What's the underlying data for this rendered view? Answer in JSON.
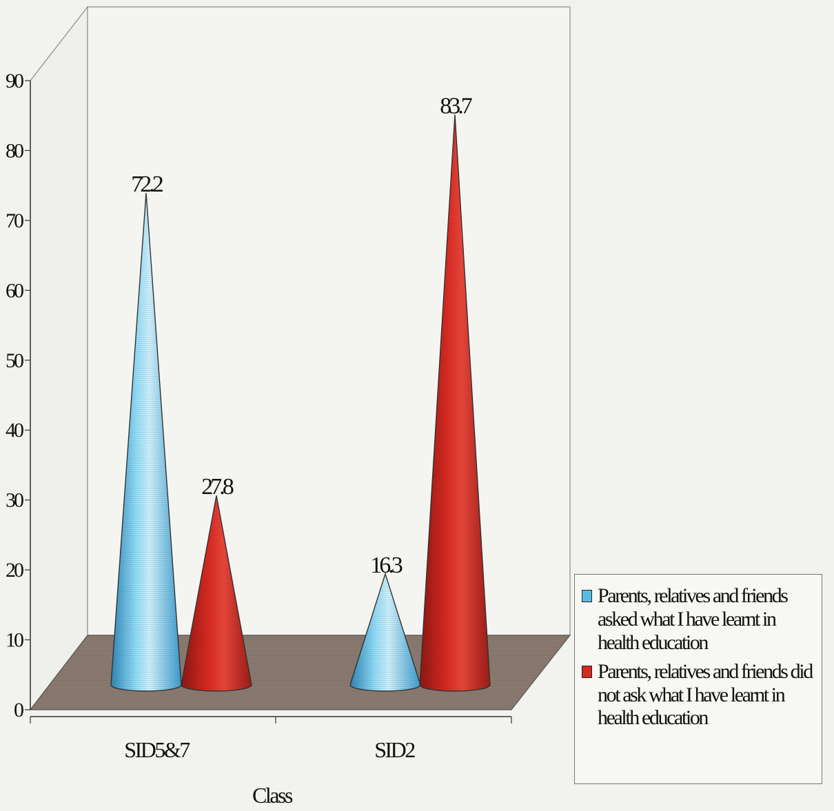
{
  "chart_data": {
    "type": "bar",
    "title": "",
    "xlabel": "Class",
    "ylabel": "",
    "ylim": [
      0,
      90
    ],
    "yticks": [
      0,
      10,
      20,
      30,
      40,
      50,
      60,
      70,
      80,
      90
    ],
    "categories": [
      "SID5&7",
      "SID2"
    ],
    "series": [
      {
        "name": "Parents, relatives and friends asked what I have learnt in health education",
        "values": [
          72.2,
          16.3
        ],
        "labels": [
          "72.2",
          "16.3"
        ],
        "color": "#57bde0"
      },
      {
        "name": "Parents, relatives and friends did not ask what I have learnt in health education",
        "values": [
          27.8,
          83.7
        ],
        "labels": [
          "27.8",
          "83.7"
        ],
        "color": "#d32a22"
      }
    ],
    "mark_shape": "cone",
    "grid": false,
    "legend_position": "right"
  }
}
